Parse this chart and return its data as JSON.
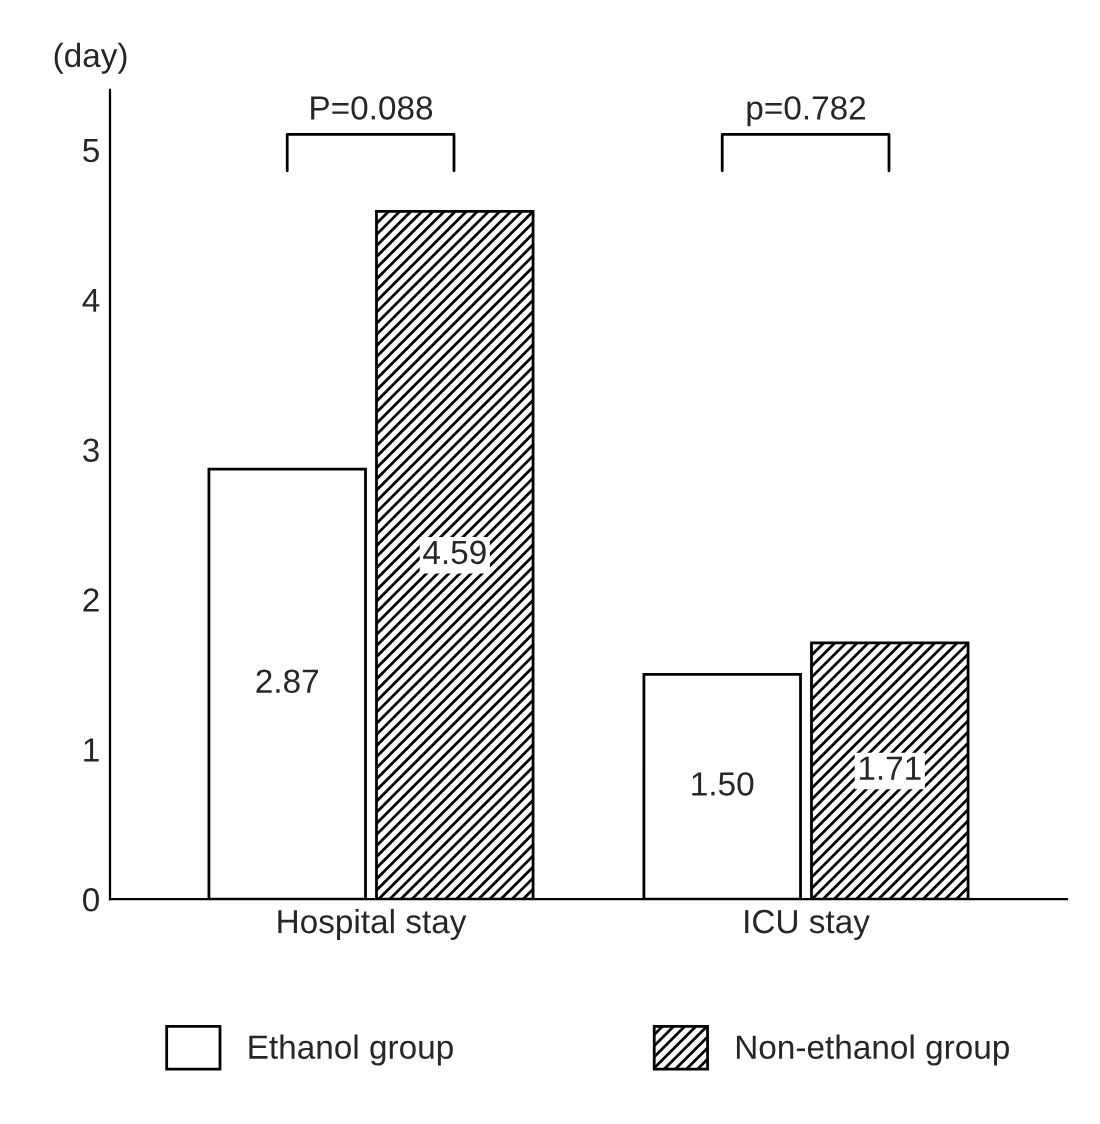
{
  "chart_data": {
    "type": "bar",
    "ylabel": "(day)",
    "categories": [
      "Hospital stay",
      "ICU stay"
    ],
    "series": [
      {
        "name": "Ethanol group",
        "color": "#ffffff",
        "values": [
          2.87,
          1.5
        ],
        "value_labels": [
          "2.87",
          "1.50"
        ]
      },
      {
        "name": "Non-ethanol group",
        "color": "#000000",
        "values": [
          4.59,
          1.71
        ],
        "value_labels": [
          "4.59",
          "1.71"
        ]
      }
    ],
    "ylim": [
      0,
      5.4
    ],
    "yticks": [
      0,
      1,
      2,
      3,
      4,
      5
    ],
    "grid": false,
    "legend": "bottom",
    "annotations": [
      "P=0.088",
      "p=0.782"
    ]
  }
}
